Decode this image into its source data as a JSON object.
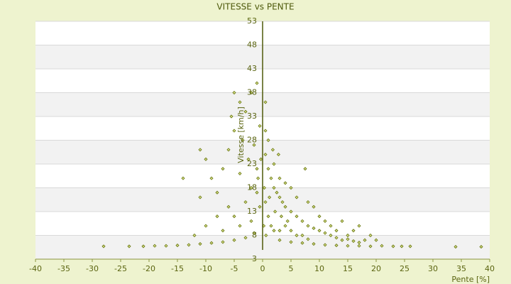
{
  "chart_data": {
    "type": "scatter",
    "title": "VITESSE vs PENTE",
    "x_label": "Pente [%]",
    "y_label": "Vitesse [km/h]",
    "color": "#66740e",
    "xlim": [
      -40,
      40
    ],
    "xticks": [
      -40,
      -35,
      -30,
      -25,
      -20,
      -15,
      -10,
      -5,
      0,
      5,
      10,
      15,
      20,
      25,
      30,
      35,
      40
    ],
    "ylim": [
      3,
      53
    ],
    "yticks": [
      3,
      8,
      13,
      18,
      23,
      28,
      33,
      38,
      43,
      48,
      53
    ],
    "grid": true,
    "x": [
      -28,
      -23.5,
      -21,
      -19,
      -17,
      -15,
      -13,
      -11,
      -9,
      -7,
      -5,
      -3,
      -1.5,
      3,
      5,
      7,
      9,
      11,
      13,
      15,
      17,
      19,
      21,
      23,
      24.5,
      26,
      34,
      38.5,
      -14,
      -11,
      -10,
      -9,
      -8,
      -7,
      -6,
      -5.5,
      -5,
      -4,
      -5,
      -3,
      -3.5,
      -2,
      -1,
      -2.5,
      -4,
      -6,
      -11,
      -8,
      -10,
      -12,
      -7,
      -5,
      -3,
      -2,
      -1,
      -1.5,
      -0.5,
      0.5,
      -4,
      -2,
      0.5,
      1,
      1.5,
      2,
      2.5,
      3,
      3.5,
      4,
      5,
      6,
      7,
      8,
      9,
      10,
      11,
      12,
      13,
      14,
      15,
      16,
      17,
      18,
      20,
      0.5,
      1,
      1.5,
      2,
      3,
      4,
      5,
      6,
      7,
      8,
      1,
      0.5,
      2,
      3,
      4,
      5,
      6,
      7.5,
      8,
      9,
      10,
      11,
      12,
      13,
      14,
      15,
      16,
      17,
      19,
      0.3,
      0.2,
      0.6,
      1.2,
      2.2,
      3.3,
      4.4,
      2.8,
      1.8,
      -0.5,
      -1,
      -0.8,
      -0.3
    ],
    "values": [
      5.7,
      5.7,
      5.7,
      5.8,
      5.8,
      5.9,
      6,
      6.2,
      6.4,
      6.6,
      7,
      7.5,
      8.5,
      7,
      6.6,
      6.4,
      6.2,
      6,
      5.9,
      5.8,
      5.8,
      5.7,
      5.8,
      5.7,
      5.7,
      5.7,
      5.6,
      5.6,
      20,
      26,
      24,
      20,
      17,
      22,
      26,
      33,
      30,
      36,
      38,
      34,
      28,
      38,
      40,
      24,
      21,
      14,
      16,
      12,
      10,
      8,
      9,
      12,
      15,
      18,
      22,
      27,
      31,
      36,
      10,
      11,
      25,
      22,
      20,
      18,
      17,
      16,
      15,
      14,
      13,
      12,
      11,
      10,
      9.5,
      9,
      8.5,
      8,
      7.5,
      7,
      7.2,
      6.8,
      6.5,
      7,
      7,
      15,
      12,
      10,
      9,
      9,
      10,
      9,
      8,
      8,
      7.2,
      28,
      30,
      23,
      20,
      19,
      18,
      16,
      22,
      15,
      14,
      12,
      11,
      10,
      9,
      11,
      8,
      9,
      10,
      8,
      18,
      10,
      8,
      16,
      13,
      12,
      11,
      25,
      26,
      14,
      17,
      20,
      24
    ]
  }
}
